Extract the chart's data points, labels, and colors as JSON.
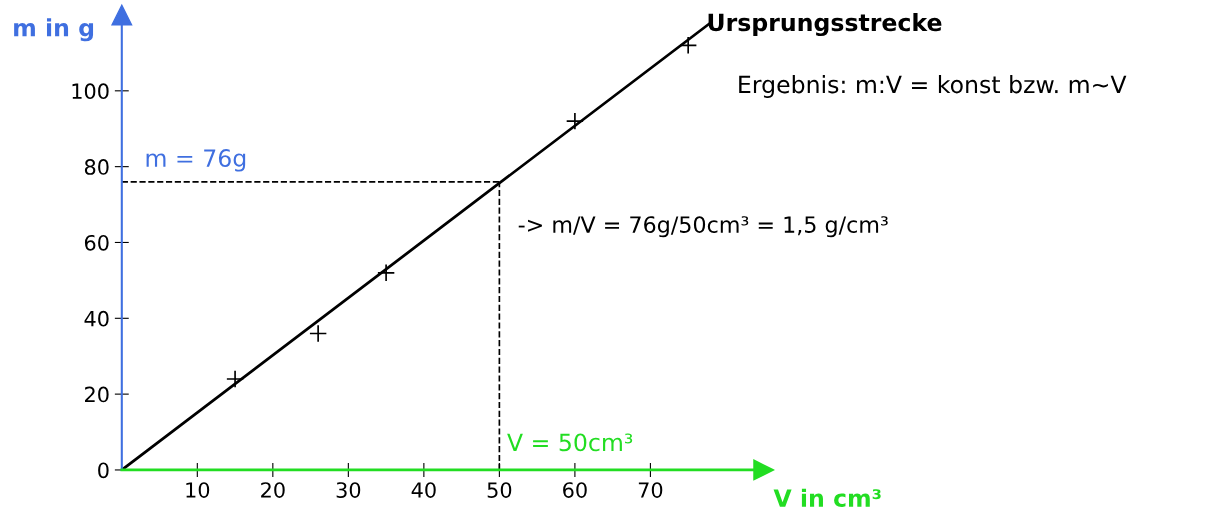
{
  "chart_data": {
    "type": "scatter",
    "xlabel": "V in cm³",
    "ylabel": "m in g",
    "xlim": [
      0,
      85
    ],
    "ylim": [
      0,
      120
    ],
    "xticks": [
      10,
      20,
      30,
      40,
      50,
      60,
      70
    ],
    "yticks": [
      0,
      20,
      40,
      60,
      80,
      100
    ],
    "series": [
      {
        "color": "#000000",
        "marker": "cross",
        "x": [
          15,
          26,
          35,
          60,
          75
        ],
        "values": [
          24,
          36,
          52,
          92,
          112
        ]
      },
      {
        "type": "line",
        "color": "#000000",
        "marker": "none",
        "line_style": "solid",
        "x": [
          0,
          78
        ],
        "values": [
          0,
          118
        ]
      }
    ],
    "ref_lines": [
      {
        "axis": "y",
        "value": 76,
        "label": "m = 76g",
        "color": "#000000",
        "line_style": "dashed"
      },
      {
        "axis": "x",
        "value": 50,
        "label": "V = 50cm³",
        "color": "#000000",
        "line_style": "dashed"
      }
    ],
    "annotations": [
      "Ursprungsstrecke",
      "Ergebnis: m:V = konst bzw. m~V",
      "-> m/V = 76g/50cm³ = 1,5 g/cm³"
    ],
    "grid": false,
    "legend": false
  }
}
